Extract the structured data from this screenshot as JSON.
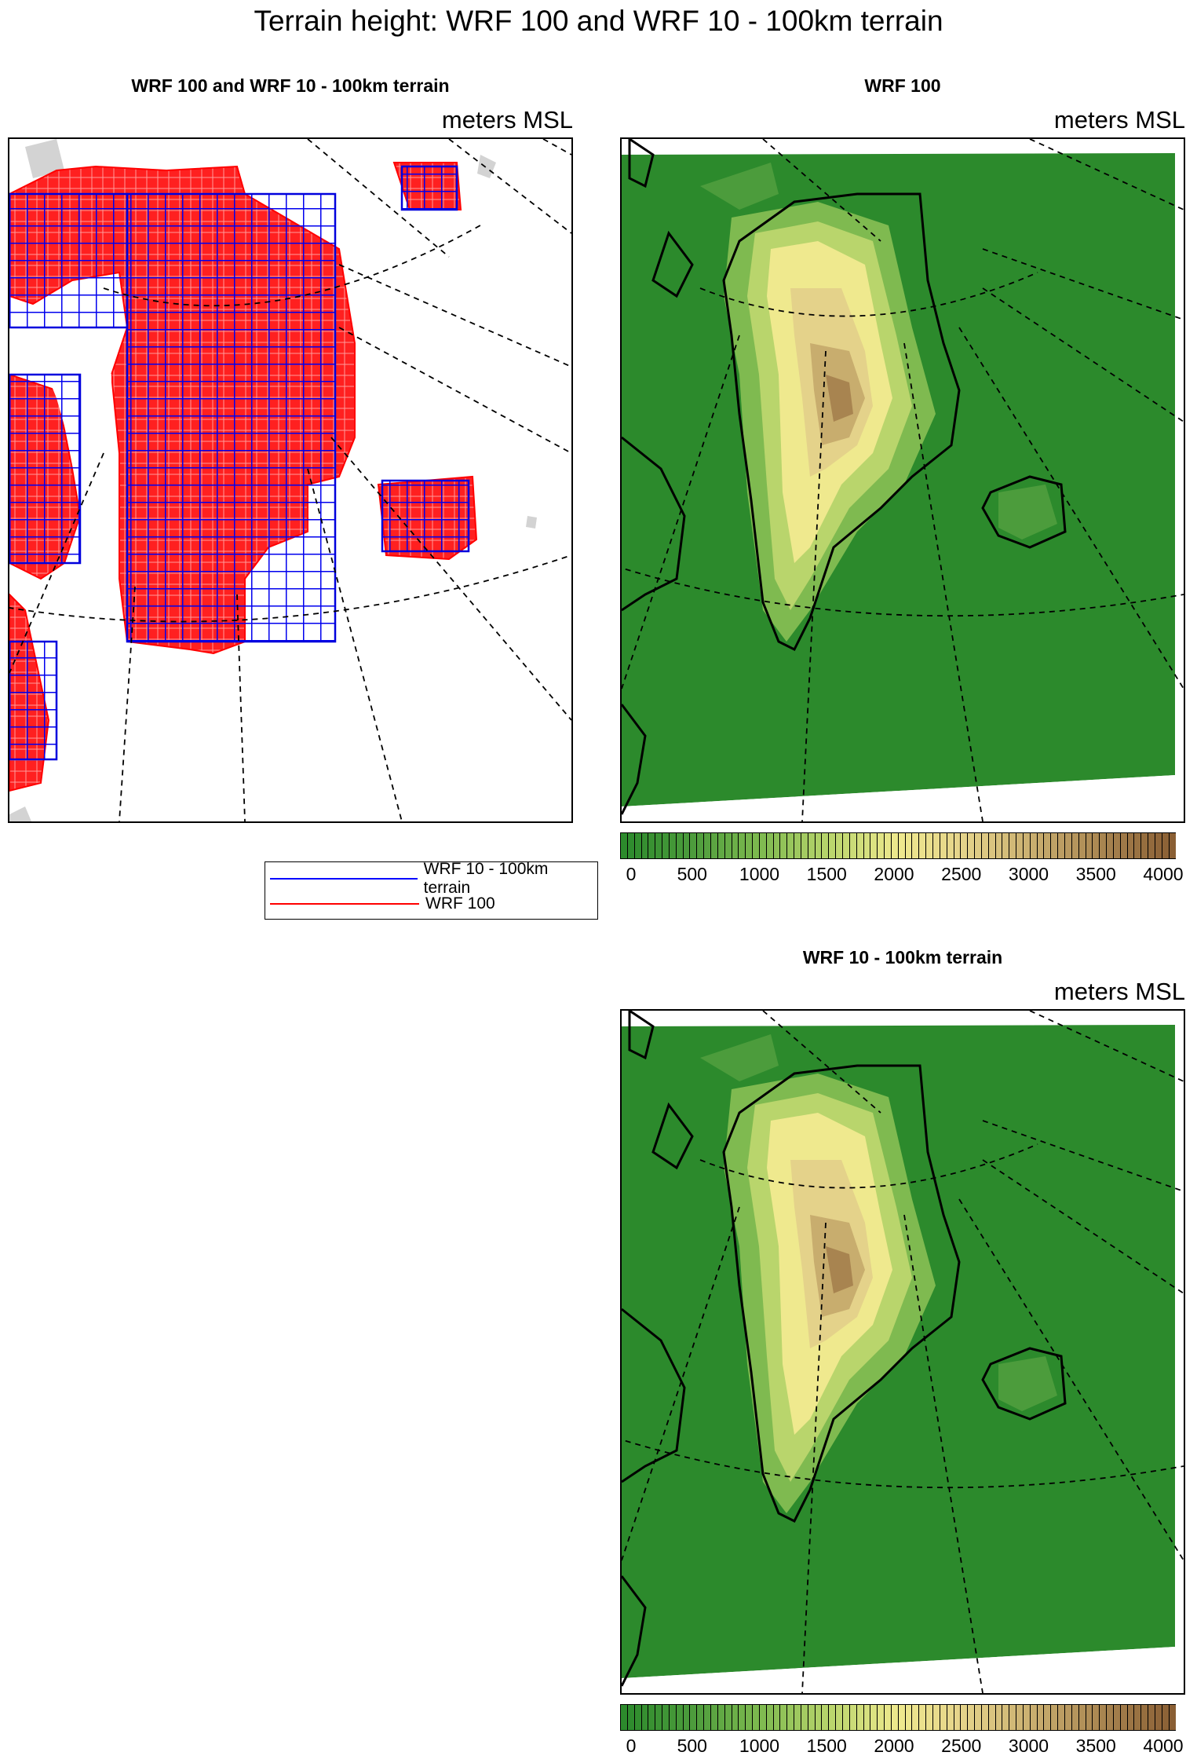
{
  "title": "Terrain height: WRF 100 and WRF 10 - 100km terrain",
  "panels": {
    "overlay": {
      "title": "WRF 100 and WRF 10 - 100km terrain",
      "units": "meters MSL"
    },
    "wrf100": {
      "title": "WRF 100",
      "units": "meters MSL"
    },
    "wrf10": {
      "title": "WRF 10 - 100km terrain",
      "units": "meters MSL"
    }
  },
  "legend": {
    "items": [
      {
        "label": "WRF 10 - 100km terrain",
        "color": "#0000ff"
      },
      {
        "label": "WRF 100",
        "color": "#ff0000"
      }
    ]
  },
  "colorbar": {
    "ticks": [
      "0",
      "500",
      "1000",
      "1500",
      "2000",
      "2500",
      "3000",
      "3500",
      "4000"
    ],
    "min": 0,
    "max": 4000,
    "n_bins": 80,
    "palette": [
      "#2c8a2c",
      "#4c9c3c",
      "#7fba50",
      "#b9d56c",
      "#efe98e",
      "#e4d28a",
      "#c8ad6e",
      "#a88450",
      "#8a5f34"
    ]
  },
  "colors": {
    "land_low": "#2c8a2c",
    "overlay_wrf100": "#ff0000",
    "overlay_wrf10": "#0000ff",
    "land_mask": "#d3d3d3"
  }
}
